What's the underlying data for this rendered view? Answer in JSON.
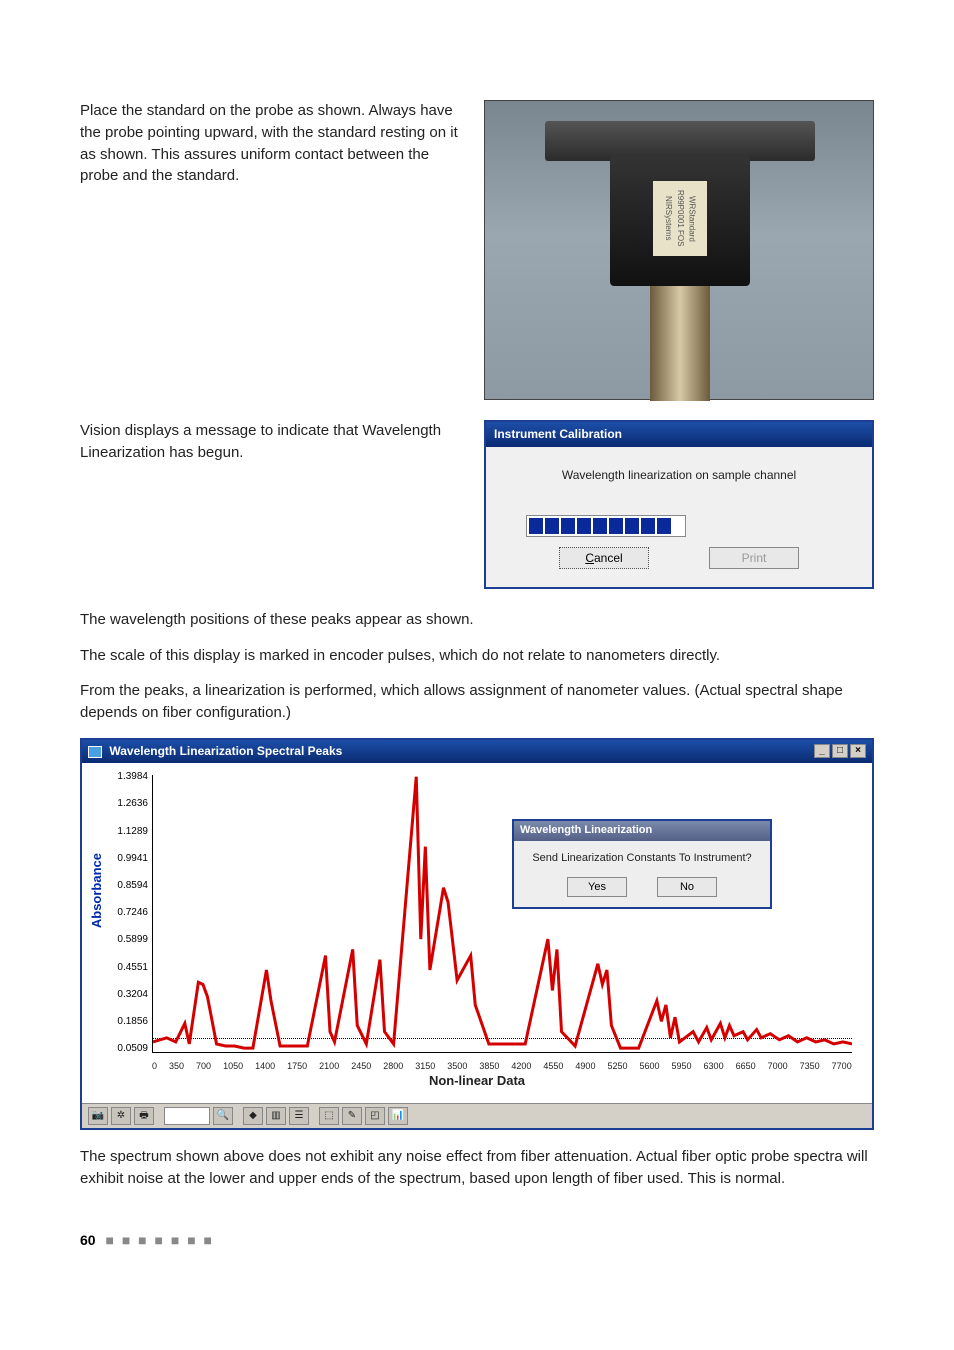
{
  "para1": "Place the standard on the probe as shown. Always have the probe pointing upward, with the standard resting on it as shown. This assures uniform contact between the probe and the standard.",
  "para2": "Vision displays a message to indicate that Wavelength Linearization has begun.",
  "para3": "The wavelength positions of these peaks appear as shown.",
  "para4": "The scale of this display is marked in encoder pulses, which do not relate to nanometers directly.",
  "para5": "From the peaks, a linearization is performed, which allows assignment of nanometer values. (Actual spectral shape depends on fiber configuration.)",
  "para6": "The spectrum shown above does not exhibit any noise effect from fiber attenuation. Actual fiber optic probe spectra will exhibit noise at the lower and upper ends of the spectrum, based upon length of fiber used. This is normal.",
  "probe_label": "WRStandard R99P0001 FOS NIRSystems",
  "calib": {
    "title": "Instrument Calibration",
    "msg": "Wavelength linearization on sample channel",
    "progress_blocks": 9,
    "cancel": "Cancel",
    "print": "Print"
  },
  "spec": {
    "title": "Wavelength Linearization Spectral Peaks",
    "yaxis": "Absorbance",
    "xaxis": "Non-linear Data",
    "yticks": [
      "1.3984",
      "1.2636",
      "1.1289",
      "0.9941",
      "0.8594",
      "0.7246",
      "0.5899",
      "0.4551",
      "0.3204",
      "0.1856",
      "0.0509"
    ],
    "xticks": [
      "0",
      "350",
      "700",
      "1050",
      "1400",
      "1750",
      "2100",
      "2450",
      "2800",
      "3150",
      "3500",
      "3850",
      "4200",
      "4550",
      "4900",
      "5250",
      "5600",
      "5950",
      "6300",
      "6650",
      "7000",
      "7350",
      "7700"
    ],
    "ylim": [
      0.0509,
      1.3984
    ],
    "xlim": [
      0,
      7700
    ],
    "line_color": "#d40000",
    "dotline_ypos_pct": 95,
    "spectrum_points": [
      [
        0,
        0.1
      ],
      [
        150,
        0.12
      ],
      [
        250,
        0.1
      ],
      [
        350,
        0.19
      ],
      [
        400,
        0.09
      ],
      [
        500,
        0.39
      ],
      [
        550,
        0.38
      ],
      [
        600,
        0.32
      ],
      [
        700,
        0.09
      ],
      [
        800,
        0.08
      ],
      [
        900,
        0.08
      ],
      [
        1000,
        0.07
      ],
      [
        1100,
        0.07
      ],
      [
        1250,
        0.45
      ],
      [
        1300,
        0.3
      ],
      [
        1400,
        0.08
      ],
      [
        1500,
        0.08
      ],
      [
        1700,
        0.08
      ],
      [
        1900,
        0.52
      ],
      [
        1950,
        0.15
      ],
      [
        2000,
        0.1
      ],
      [
        2200,
        0.55
      ],
      [
        2250,
        0.18
      ],
      [
        2350,
        0.09
      ],
      [
        2500,
        0.5
      ],
      [
        2550,
        0.15
      ],
      [
        2650,
        0.09
      ],
      [
        2900,
        1.39
      ],
      [
        2950,
        0.6
      ],
      [
        3000,
        1.05
      ],
      [
        3050,
        0.45
      ],
      [
        3200,
        0.85
      ],
      [
        3250,
        0.78
      ],
      [
        3350,
        0.4
      ],
      [
        3500,
        0.52
      ],
      [
        3550,
        0.28
      ],
      [
        3700,
        0.09
      ],
      [
        3900,
        0.09
      ],
      [
        4100,
        0.09
      ],
      [
        4350,
        0.6
      ],
      [
        4400,
        0.35
      ],
      [
        4450,
        0.55
      ],
      [
        4500,
        0.15
      ],
      [
        4650,
        0.08
      ],
      [
        4900,
        0.48
      ],
      [
        4950,
        0.38
      ],
      [
        5000,
        0.45
      ],
      [
        5050,
        0.18
      ],
      [
        5150,
        0.07
      ],
      [
        5350,
        0.07
      ],
      [
        5550,
        0.3
      ],
      [
        5600,
        0.2
      ],
      [
        5650,
        0.28
      ],
      [
        5700,
        0.12
      ],
      [
        5750,
        0.22
      ],
      [
        5800,
        0.1
      ],
      [
        5950,
        0.15
      ],
      [
        6010,
        0.1
      ],
      [
        6100,
        0.17
      ],
      [
        6150,
        0.11
      ],
      [
        6250,
        0.19
      ],
      [
        6300,
        0.12
      ],
      [
        6350,
        0.18
      ],
      [
        6400,
        0.13
      ],
      [
        6500,
        0.15
      ],
      [
        6550,
        0.11
      ],
      [
        6650,
        0.16
      ],
      [
        6700,
        0.12
      ],
      [
        6800,
        0.14
      ],
      [
        6900,
        0.11
      ],
      [
        7000,
        0.13
      ],
      [
        7100,
        0.1
      ],
      [
        7200,
        0.12
      ],
      [
        7300,
        0.1
      ],
      [
        7400,
        0.11
      ],
      [
        7500,
        0.09
      ],
      [
        7600,
        0.1
      ],
      [
        7700,
        0.09
      ]
    ],
    "inner": {
      "title": "Wavelength Linearization",
      "msg": "Send Linearization Constants To Instrument?",
      "yes": "Yes",
      "no": "No"
    }
  },
  "page_number": "60",
  "colors": {
    "titlebar": "#1c4fa8",
    "spectrum": "#d40000",
    "axis_label": "#0028ac"
  }
}
